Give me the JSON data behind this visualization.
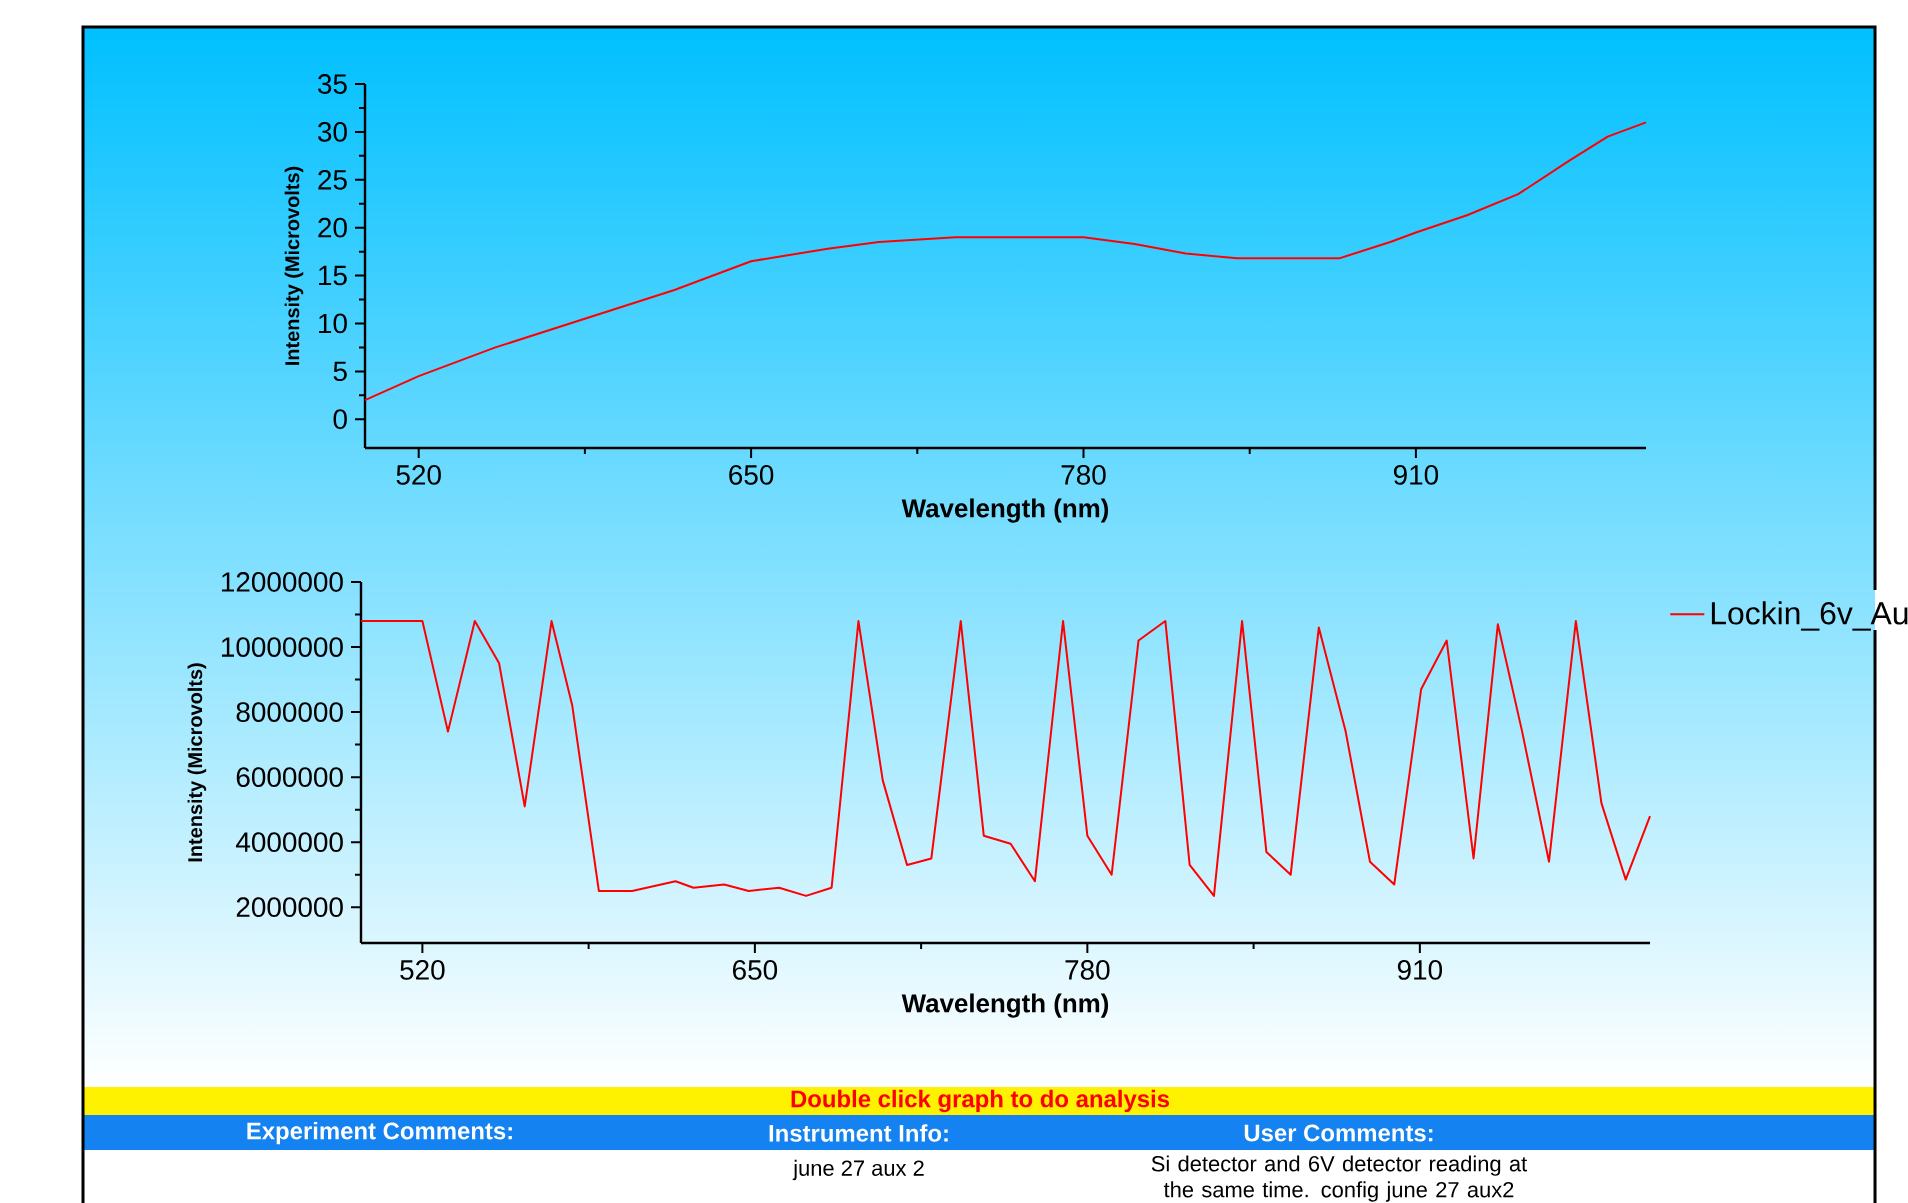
{
  "chart_data": [
    {
      "type": "line",
      "xlabel": "Wavelength (nm)",
      "ylabel": "Intensity (Microvolts)",
      "xlim": [
        499,
        1000
      ],
      "xticks": [
        520,
        650,
        780,
        910
      ],
      "ylim": [
        -3,
        35
      ],
      "yticks": [
        0,
        5,
        10,
        15,
        20,
        25,
        30,
        35
      ],
      "series": [
        {
          "color": "#ff0000",
          "x": [
            499,
            520,
            550,
            585,
            620,
            650,
            680,
            700,
            730,
            760,
            780,
            800,
            820,
            840,
            860,
            880,
            900,
            910,
            930,
            950,
            970,
            985,
            1000
          ],
          "values": [
            2,
            4.5,
            7.5,
            10.5,
            13.5,
            16.5,
            17.8,
            18.5,
            19,
            19,
            19,
            18.3,
            17.3,
            16.8,
            16.8,
            16.8,
            18.5,
            19.5,
            21.3,
            23.5,
            27,
            29.5,
            31
          ]
        }
      ]
    },
    {
      "type": "line",
      "xlabel": "Wavelength (nm)",
      "ylabel": "Intensity (Microvolts)",
      "legend": "top right",
      "xlim": [
        496,
        1000
      ],
      "xticks": [
        520,
        650,
        780,
        910
      ],
      "ylim": [
        900000,
        12000000
      ],
      "yticks": [
        2000000,
        4000000,
        6000000,
        8000000,
        10000000,
        12000000
      ],
      "series": [
        {
          "name": "Lockin_6v_Au",
          "color": "#ff0000",
          "x": [
            496,
            520,
            530,
            540.5,
            550,
            560,
            570.5,
            578.6,
            589,
            602,
            619,
            626,
            638,
            647.6,
            659.5,
            670,
            680,
            690.5,
            700,
            709.5,
            719,
            730.5,
            739.5,
            750,
            759.5,
            770.5,
            780,
            789.5,
            800,
            810.5,
            820,
            829.5,
            840.5,
            850,
            859.5,
            870.5,
            881,
            890.5,
            900,
            910.5,
            920.5,
            931,
            940.5,
            950,
            960.5,
            971,
            981,
            990.5,
            1000
          ],
          "values": [
            10800000,
            10800000,
            7400000,
            10800000,
            9500000,
            5100000,
            10800000,
            8200000,
            2500000,
            2500000,
            2800000,
            2600000,
            2700000,
            2500000,
            2600000,
            2350000,
            2600000,
            10800000,
            5900000,
            3300000,
            3500000,
            10800000,
            4200000,
            3950000,
            2800000,
            10800000,
            4200000,
            3000000,
            10200000,
            10800000,
            3300000,
            2350000,
            10800000,
            3700000,
            3000000,
            10600000,
            7400000,
            3400000,
            2700000,
            8700000,
            10200000,
            3500000,
            10700000,
            7400000,
            3400000,
            10800000,
            5200000,
            2850000,
            4800000
          ]
        }
      ],
      "annotations": [
        "Double click graph to do analysis",
        "Experiment Comments:",
        "Instrument Info:",
        "User Comments:",
        "june 27 aux 2",
        "Si detector and 6V detector reading at the same time. config june 27 aux2"
      ]
    }
  ]
}
